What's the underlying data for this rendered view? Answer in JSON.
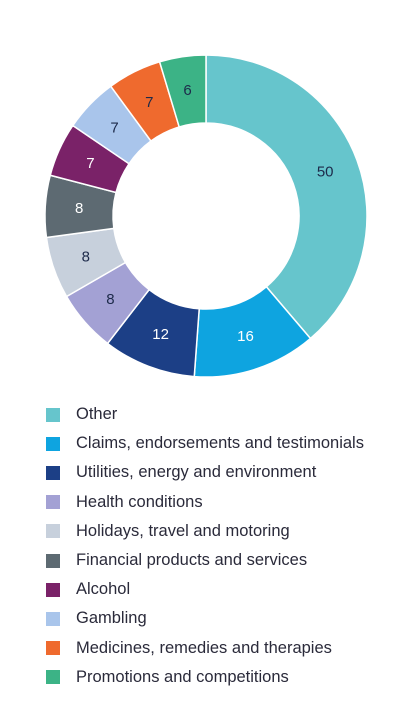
{
  "chart_data": {
    "type": "pie",
    "donut": true,
    "categories": [
      "Other",
      "Claims, endorsements and testimonials",
      "Utilities, energy and environment",
      "Health conditions",
      "Holidays, travel and motoring",
      "Financial products and services",
      "Alcohol",
      "Gambling",
      "Medicines, remedies and therapies",
      "Promotions and competitions"
    ],
    "values": [
      50,
      16,
      12,
      8,
      8,
      8,
      7,
      7,
      7,
      6
    ],
    "colors": [
      "#66c5cc",
      "#0ea4e0",
      "#1c3f86",
      "#a3a1d4",
      "#c7d0dc",
      "#5d6a72",
      "#7a2268",
      "#a9c5eb",
      "#ef6a2e",
      "#3cb386"
    ],
    "label_colors": [
      "#1d2a4a",
      "#ffffff",
      "#ffffff",
      "#1d2a4a",
      "#1d2a4a",
      "#ffffff",
      "#ffffff",
      "#1d2a4a",
      "#1d2a4a",
      "#1d2a4a"
    ],
    "legend_position": "bottom"
  }
}
